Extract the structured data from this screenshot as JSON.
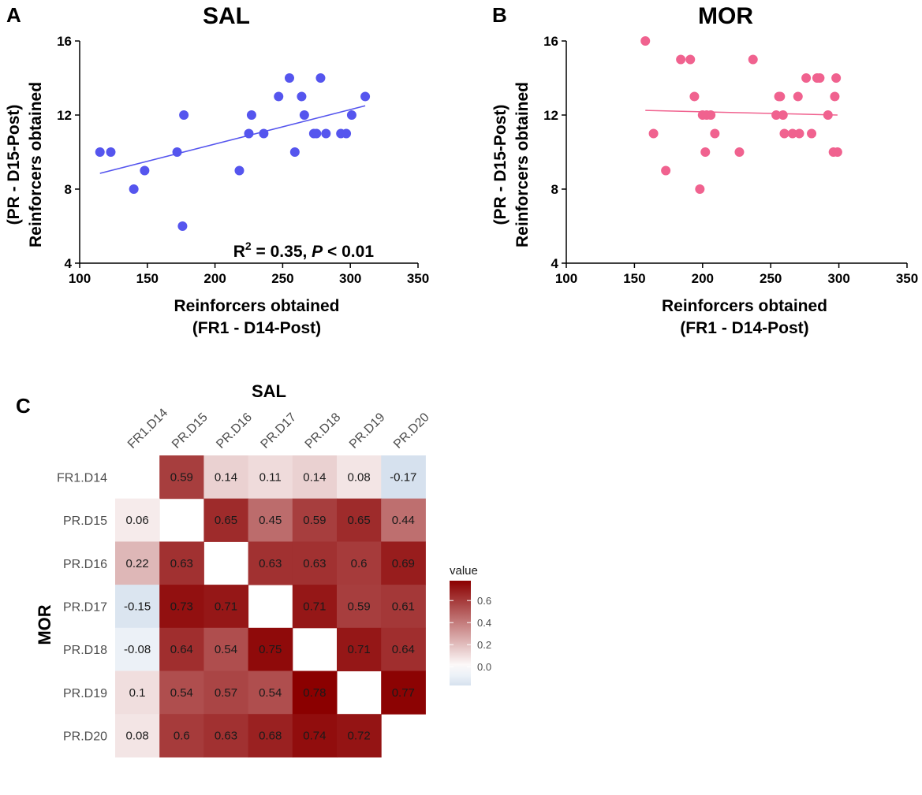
{
  "chart_data": [
    {
      "type": "scatter",
      "panel": "A",
      "title": "SAL",
      "xlabel": [
        "Reinforcers obtained",
        "(FR1 - D14-Post)"
      ],
      "ylabel": [
        "(PR - D15-Post)",
        "Reinforcers obtained"
      ],
      "xlim": [
        100,
        350
      ],
      "ylim": [
        4,
        16
      ],
      "xticks": [
        100,
        150,
        200,
        250,
        300,
        350
      ],
      "yticks": [
        4,
        8,
        12,
        16
      ],
      "color": "#5555ee",
      "points": [
        [
          115,
          10
        ],
        [
          123,
          10
        ],
        [
          140,
          8
        ],
        [
          148,
          9
        ],
        [
          172,
          10
        ],
        [
          176,
          6
        ],
        [
          177,
          12
        ],
        [
          218,
          9
        ],
        [
          225,
          11
        ],
        [
          227,
          12
        ],
        [
          236,
          11
        ],
        [
          247,
          13
        ],
        [
          255,
          14
        ],
        [
          259,
          10
        ],
        [
          264,
          13
        ],
        [
          266,
          12
        ],
        [
          273,
          11
        ],
        [
          275,
          11
        ],
        [
          278,
          14
        ],
        [
          282,
          11
        ],
        [
          293,
          11
        ],
        [
          297,
          11
        ],
        [
          301,
          12
        ],
        [
          311,
          13
        ]
      ],
      "fit": {
        "x": [
          115,
          311
        ],
        "y": [
          8.85,
          12.5
        ]
      },
      "annotation": {
        "r2_prefix": "R",
        "r2_sup": "2",
        "r2_value": " = 0.35, ",
        "p_label": "P",
        "p_value": " < 0.01"
      }
    },
    {
      "type": "scatter",
      "panel": "B",
      "title": "MOR",
      "xlabel": [
        "Reinforcers obtained",
        "(FR1 - D14-Post)"
      ],
      "ylabel": [
        "(PR - D15-Post)",
        "Reinforcers obtained"
      ],
      "xlim": [
        100,
        350
      ],
      "ylim": [
        4,
        16
      ],
      "xticks": [
        100,
        150,
        200,
        250,
        300,
        350
      ],
      "yticks": [
        4,
        8,
        12,
        16
      ],
      "color": "#f0628f",
      "points": [
        [
          158,
          16
        ],
        [
          164,
          11
        ],
        [
          173,
          9
        ],
        [
          184,
          15
        ],
        [
          191,
          15
        ],
        [
          194,
          13
        ],
        [
          198,
          8
        ],
        [
          200,
          12
        ],
        [
          202,
          10
        ],
        [
          203,
          12
        ],
        [
          206,
          12
        ],
        [
          209,
          11
        ],
        [
          227,
          10
        ],
        [
          237,
          15
        ],
        [
          254,
          12
        ],
        [
          256,
          13
        ],
        [
          257,
          13
        ],
        [
          259,
          12
        ],
        [
          260,
          11
        ],
        [
          266,
          11
        ],
        [
          270,
          13
        ],
        [
          271,
          11
        ],
        [
          276,
          14
        ],
        [
          280,
          11
        ],
        [
          284,
          14
        ],
        [
          286,
          14
        ],
        [
          292,
          12
        ],
        [
          296,
          10
        ],
        [
          297,
          13
        ],
        [
          298,
          14
        ],
        [
          299,
          10
        ]
      ],
      "fit": {
        "x": [
          158,
          299
        ],
        "y": [
          12.25,
          12.0
        ]
      }
    },
    {
      "type": "heatmap",
      "panel": "C",
      "x_title": "SAL",
      "y_title": "MOR",
      "labels": [
        "FR1.D14",
        "PR.D15",
        "PR.D16",
        "PR.D17",
        "PR.D18",
        "PR.D19",
        "PR.D20"
      ],
      "matrix": [
        [
          null,
          0.59,
          0.14,
          0.11,
          0.14,
          0.08,
          -0.17
        ],
        [
          0.06,
          null,
          0.65,
          0.45,
          0.59,
          0.65,
          0.44
        ],
        [
          0.22,
          0.63,
          null,
          0.63,
          0.63,
          0.6,
          0.69
        ],
        [
          -0.15,
          0.73,
          0.71,
          null,
          0.71,
          0.59,
          0.61
        ],
        [
          -0.08,
          0.64,
          0.54,
          0.75,
          null,
          0.71,
          0.64
        ],
        [
          0.1,
          0.54,
          0.57,
          0.54,
          0.78,
          null,
          0.77
        ],
        [
          0.08,
          0.6,
          0.63,
          0.68,
          0.74,
          0.72,
          null
        ]
      ],
      "legend": {
        "title": "value",
        "ticks": [
          0.0,
          0.2,
          0.4,
          0.6
        ],
        "tick_labels": [
          "0.0",
          "0.2",
          "0.4",
          "0.6"
        ],
        "range": [
          -0.17,
          0.78
        ]
      },
      "colors": {
        "low": "#d6e1ee",
        "mid": "#ffffff",
        "high": "#8b0000"
      }
    }
  ]
}
